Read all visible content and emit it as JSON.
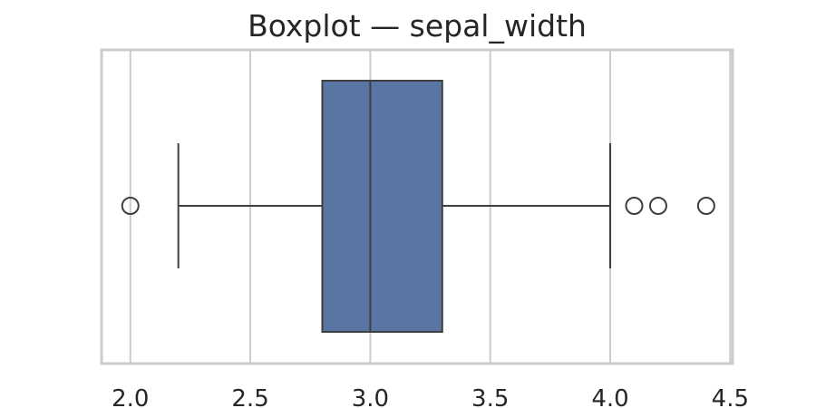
{
  "chart_data": {
    "type": "boxplot",
    "title": "Boxplot — sepal_width",
    "orientation": "horizontal",
    "variable": "sepal_width",
    "xlabel": "",
    "ylabel": "",
    "xlim": [
      1.88,
      4.51
    ],
    "xticks": [
      2.0,
      2.5,
      3.0,
      3.5,
      4.0,
      4.5
    ],
    "xtick_labels": [
      "2.0",
      "2.5",
      "3.0",
      "3.5",
      "4.0",
      "4.5"
    ],
    "grid": "vertical",
    "stats": {
      "whisker_low": 2.2,
      "q1": 2.8,
      "median": 3.0,
      "q3": 3.3,
      "whisker_high": 4.0
    },
    "outliers": [
      2.0,
      4.1,
      4.2,
      4.4
    ],
    "colors": {
      "box": "#5875a4",
      "lines": "#3f3f3f",
      "grid": "#cccccc",
      "spine": "#cccccc"
    }
  }
}
